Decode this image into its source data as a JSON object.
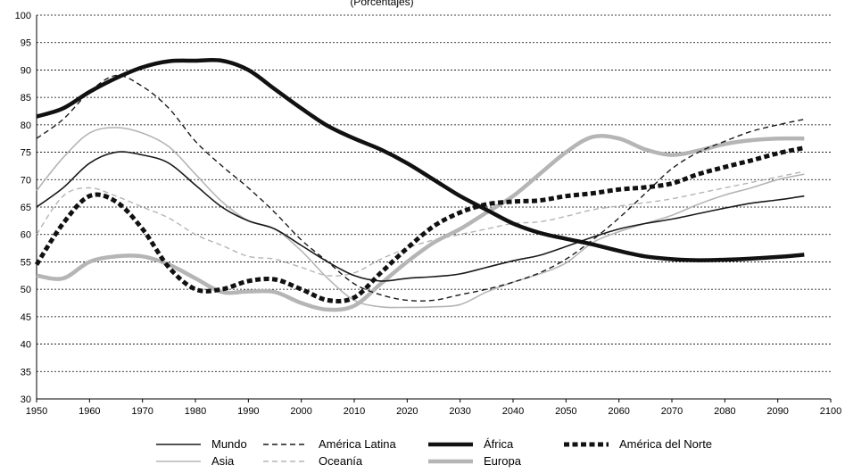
{
  "chart_data": {
    "type": "line",
    "title": "(Porcentajes)",
    "xlabel": "",
    "ylabel": "",
    "xlim": [
      1950,
      2100
    ],
    "ylim": [
      30,
      100
    ],
    "xticks": [
      "1950",
      "1960",
      "1970",
      "1980",
      "1990",
      "2000",
      "2010",
      "2020",
      "2030",
      "2040",
      "2050",
      "2060",
      "2070",
      "2080",
      "2090",
      "2100"
    ],
    "yticks": [
      "30",
      "35",
      "40",
      "45",
      "50",
      "55",
      "60",
      "65",
      "70",
      "75",
      "80",
      "85",
      "90",
      "95",
      "100"
    ],
    "grid": "horizontal-dotted",
    "legend_position": "bottom",
    "series": [
      {
        "name": "Mundo",
        "color": "#1a1a1a",
        "style": "solid-thin",
        "x": [
          1950,
          1955,
          1960,
          1965,
          1970,
          1975,
          1980,
          1985,
          1990,
          1995,
          2000,
          2005,
          2010,
          2015,
          2020,
          2025,
          2030,
          2035,
          2040,
          2045,
          2050,
          2055,
          2060,
          2065,
          2070,
          2075,
          2080,
          2085,
          2090,
          2095
        ],
        "y": [
          65,
          68.5,
          73,
          75,
          74.5,
          73,
          69,
          65,
          62.5,
          61,
          58,
          55,
          52.5,
          51.5,
          52,
          52.3,
          52.8,
          54,
          55.2,
          56.2,
          57.8,
          59.5,
          61,
          62,
          62.8,
          63.8,
          64.8,
          65.7,
          66.3,
          67
        ]
      },
      {
        "name": "América Latina",
        "color": "#1a1a1a",
        "style": "dashed-thin",
        "x": [
          1950,
          1955,
          1960,
          1965,
          1970,
          1975,
          1980,
          1985,
          1990,
          1995,
          2000,
          2005,
          2010,
          2015,
          2020,
          2025,
          2030,
          2035,
          2040,
          2045,
          2050,
          2055,
          2060,
          2065,
          2070,
          2075,
          2080,
          2085,
          2090,
          2095
        ],
        "y": [
          77.5,
          81,
          86,
          89,
          87,
          83,
          77,
          72.5,
          68.5,
          64,
          59,
          55,
          51,
          49,
          48,
          48,
          49,
          50,
          51.3,
          53,
          55.5,
          59,
          63,
          67.5,
          72,
          75,
          77,
          78.8,
          80,
          81
        ]
      },
      {
        "name": "África",
        "color": "#111111",
        "style": "solid-thick",
        "x": [
          1950,
          1955,
          1960,
          1965,
          1970,
          1975,
          1980,
          1985,
          1990,
          1995,
          2000,
          2005,
          2010,
          2015,
          2020,
          2025,
          2030,
          2035,
          2040,
          2045,
          2050,
          2055,
          2060,
          2065,
          2070,
          2075,
          2080,
          2085,
          2090,
          2095
        ],
        "y": [
          81.5,
          83,
          86,
          88.5,
          90.5,
          91.6,
          91.7,
          91.7,
          90,
          86.5,
          83,
          79.8,
          77.5,
          75.5,
          73,
          70,
          67,
          64.5,
          62,
          60.3,
          59.2,
          58.2,
          57,
          56,
          55.5,
          55.3,
          55.4,
          55.6,
          55.9,
          56.3
        ]
      },
      {
        "name": "América del Norte",
        "color": "#111111",
        "style": "dotted-thick",
        "x": [
          1950,
          1955,
          1960,
          1965,
          1970,
          1975,
          1980,
          1985,
          1990,
          1995,
          2000,
          2005,
          2010,
          2015,
          2020,
          2025,
          2030,
          2035,
          2040,
          2045,
          2050,
          2055,
          2060,
          2065,
          2070,
          2075,
          2080,
          2085,
          2090,
          2095
        ],
        "y": [
          54.5,
          62,
          67,
          66,
          61,
          54,
          50,
          50,
          51.5,
          51.8,
          50,
          48,
          48.5,
          53,
          57.5,
          61.5,
          64,
          65.5,
          66,
          66.2,
          67,
          67.5,
          68.2,
          68.6,
          69.3,
          71,
          72.3,
          73.5,
          74.8,
          75.8
        ]
      },
      {
        "name": "Asia",
        "color": "#b5b5b5",
        "style": "solid-thin",
        "x": [
          1950,
          1955,
          1960,
          1965,
          1970,
          1975,
          1980,
          1985,
          1990,
          1995,
          2000,
          2005,
          2010,
          2015,
          2020,
          2025,
          2030,
          2035,
          2040,
          2045,
          2050,
          2055,
          2060,
          2065,
          2070,
          2075,
          2080,
          2085,
          2090,
          2095
        ],
        "y": [
          68,
          74,
          78.5,
          79.5,
          78.5,
          76,
          71,
          66,
          62.5,
          61,
          57,
          52,
          48,
          46.8,
          46.7,
          46.8,
          47.2,
          49.5,
          51.3,
          52.8,
          54.8,
          58.5,
          60.5,
          62,
          63.5,
          65.5,
          67.2,
          68.5,
          70,
          71
        ]
      },
      {
        "name": "Oceanía",
        "color": "#b5b5b5",
        "style": "dashed-thin",
        "x": [
          1950,
          1955,
          1960,
          1965,
          1970,
          1975,
          1980,
          1985,
          1990,
          1995,
          2000,
          2005,
          2010,
          2015,
          2020,
          2025,
          2030,
          2035,
          2040,
          2045,
          2050,
          2055,
          2060,
          2065,
          2070,
          2075,
          2080,
          2085,
          2090,
          2095
        ],
        "y": [
          60,
          67,
          68.5,
          67,
          65,
          63,
          60,
          58,
          56,
          55.5,
          54,
          52.5,
          53,
          55.5,
          57.5,
          59,
          60,
          61,
          62,
          62.3,
          63.3,
          64.5,
          65.2,
          65.8,
          66.5,
          67.5,
          68.5,
          69.5,
          70.5,
          71.5
        ]
      },
      {
        "name": "Europa",
        "color": "#b5b5b5",
        "style": "solid-thick",
        "x": [
          1950,
          1955,
          1960,
          1965,
          1970,
          1975,
          1980,
          1985,
          1990,
          1995,
          2000,
          2005,
          2010,
          2015,
          2020,
          2025,
          2030,
          2035,
          2040,
          2045,
          2050,
          2055,
          2060,
          2065,
          2070,
          2075,
          2080,
          2085,
          2090,
          2095
        ],
        "y": [
          52.5,
          52,
          55,
          56,
          56,
          54.5,
          52,
          49.5,
          49.6,
          49.5,
          47.5,
          46.3,
          47,
          51,
          55,
          58.5,
          61,
          64,
          67,
          71,
          75,
          77.8,
          77.5,
          75.5,
          74.5,
          75.3,
          76.5,
          77.2,
          77.5,
          77.5
        ]
      }
    ]
  }
}
